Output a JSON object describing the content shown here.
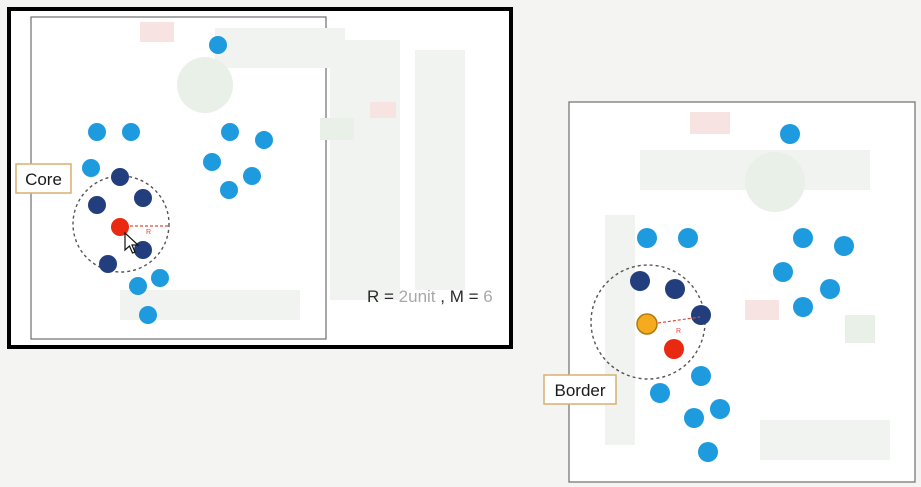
{
  "labels": {
    "core": "Core",
    "border": "Border"
  },
  "parameters": {
    "r_prefix": "R = ",
    "r_value": "2unit",
    "separator": " , M = ",
    "m_value": "6"
  },
  "radius_marker": "R",
  "colors": {
    "light_point": "#1d9bde",
    "dark_point": "#233e7c",
    "highlight_point": "#ea2a10",
    "border_point": "#f5ab1d",
    "label_border": "#d8b071"
  }
}
